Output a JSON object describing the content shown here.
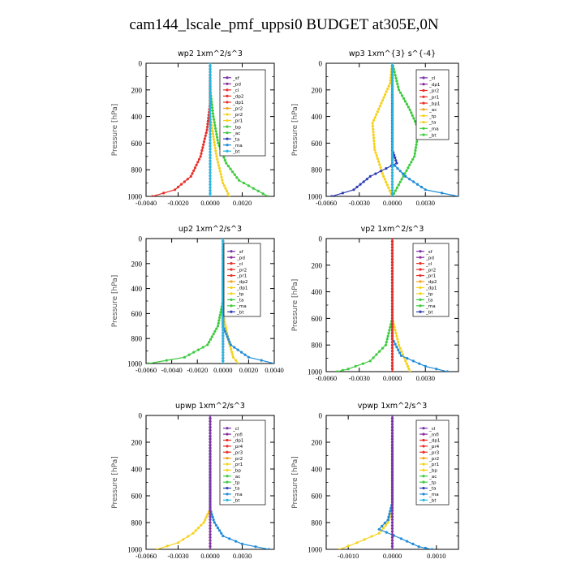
{
  "figure": {
    "title": "cam144_lscale_pmf_uppsi0  BUDGET at305E,0N"
  },
  "chart_data": [
    {
      "type": "line",
      "title": "wp2  1xm^2/s^3",
      "ylabel": "Pressure [hPa]",
      "xlim": [
        -0.004,
        0.004
      ],
      "ylim": [
        1000,
        0
      ],
      "xticks": [
        "-0.0040",
        "-0.0020",
        "0.0000",
        "0.0020"
      ],
      "yticks": [
        "0",
        "200",
        "400",
        "600",
        "800",
        "1000"
      ],
      "legend": [
        "_sf",
        "_pd",
        "_cl",
        "_dp2",
        "_dp1",
        "_pr2",
        "_pr2",
        "_pr1",
        "_bp",
        "_ac",
        "_ta",
        "_ma",
        "_bt"
      ],
      "series": [
        {
          "name": "_cl",
          "color": "#e8302a",
          "points": [
            [
              0,
              0
            ],
            [
              0,
              300
            ],
            [
              -0.0002,
              500
            ],
            [
              -0.0006,
              700
            ],
            [
              -0.0012,
              850
            ],
            [
              -0.0022,
              950
            ],
            [
              -0.0036,
              1000
            ]
          ]
        },
        {
          "name": "_pr2",
          "color": "#f5d21f",
          "points": [
            [
              0,
              0
            ],
            [
              0,
              400
            ],
            [
              0.0004,
              700
            ],
            [
              0.0008,
              900
            ],
            [
              0.0012,
              1000
            ]
          ]
        },
        {
          "name": "_ac",
          "color": "#3ecb3e",
          "points": [
            [
              0,
              0
            ],
            [
              0,
              200
            ],
            [
              0.0002,
              400
            ],
            [
              0.0005,
              600
            ],
            [
              0.001,
              750
            ],
            [
              0.0018,
              880
            ],
            [
              0.003,
              960
            ],
            [
              0.0036,
              1000
            ]
          ]
        },
        {
          "name": "_sf",
          "color": "#7a34a8",
          "points": [
            [
              0,
              0
            ],
            [
              0,
              1000
            ]
          ]
        },
        {
          "name": "_bt",
          "color": "#26b8e0",
          "points": [
            [
              0,
              0
            ],
            [
              0,
              1000
            ]
          ]
        }
      ]
    },
    {
      "type": "line",
      "title": "wp3  1xm^{3} s^{-4}",
      "ylabel": "Pressure [hPa]",
      "xlim": [
        -0.006,
        0.006
      ],
      "ylim": [
        1000,
        0
      ],
      "xticks": [
        "-0.0060",
        "-0.0030",
        "0.0000",
        "0.0030"
      ],
      "yticks": [
        "0",
        "200",
        "400",
        "600",
        "800",
        "1000"
      ],
      "legend": [
        "_cl",
        "_dp1",
        "_pr2",
        "_pr1",
        "_bp1",
        "_ac",
        "_tp",
        "_ta",
        "_ma",
        "_bt"
      ],
      "series": [
        {
          "name": "_pr2",
          "color": "#f5d21f",
          "points": [
            [
              0,
              0
            ],
            [
              -0.0002,
              150
            ],
            [
              -0.001,
              300
            ],
            [
              -0.0018,
              450
            ],
            [
              -0.0016,
              650
            ],
            [
              -0.0008,
              850
            ],
            [
              0,
              1000
            ]
          ]
        },
        {
          "name": "_ac",
          "color": "#3ecb3e",
          "points": [
            [
              0,
              0
            ],
            [
              0.0006,
              200
            ],
            [
              0.0016,
              350
            ],
            [
              0.0024,
              500
            ],
            [
              0.002,
              700
            ],
            [
              0.001,
              850
            ],
            [
              0,
              1000
            ]
          ]
        },
        {
          "name": "_tp",
          "color": "#2d3db5",
          "points": [
            [
              0,
              0
            ],
            [
              0,
              650
            ],
            [
              0.0004,
              750
            ],
            [
              -0.002,
              850
            ],
            [
              -0.0035,
              950
            ],
            [
              -0.0055,
              1000
            ]
          ]
        },
        {
          "name": "_ta",
          "color": "#1f8bd8",
          "points": [
            [
              0,
              0
            ],
            [
              0,
              750
            ],
            [
              0.0012,
              850
            ],
            [
              0.003,
              950
            ],
            [
              0.006,
              1000
            ]
          ]
        },
        {
          "name": "_cl",
          "color": "#e8302a",
          "points": [
            [
              0,
              0
            ],
            [
              0,
              1000
            ]
          ]
        },
        {
          "name": "_bt",
          "color": "#26b8e0",
          "points": [
            [
              0,
              0
            ],
            [
              0,
              1000
            ]
          ]
        }
      ]
    },
    {
      "type": "line",
      "title": "up2  1xm^2/s^3",
      "ylabel": "Pressure [hPa]",
      "xlim": [
        -0.006,
        0.004
      ],
      "ylim": [
        1000,
        0
      ],
      "xticks": [
        "-0.0060",
        "-0.0040",
        "-0.0020",
        "0.0000",
        "0.0020",
        "0.0040"
      ],
      "yticks": [
        "0",
        "200",
        "400",
        "600",
        "800",
        "1000"
      ],
      "legend": [
        "_sf",
        "_pd",
        "_cl",
        "_pr2",
        "_pr1",
        "_dp2",
        "_dp1",
        "_tp",
        "_ta",
        "_ma",
        "_bt"
      ],
      "series": [
        {
          "name": "_dp2",
          "color": "#3ecb3e",
          "points": [
            [
              0,
              0
            ],
            [
              0,
              500
            ],
            [
              -0.0004,
              700
            ],
            [
              -0.0012,
              850
            ],
            [
              -0.003,
              950
            ],
            [
              -0.0058,
              1000
            ]
          ]
        },
        {
          "name": "_pr2",
          "color": "#f5d21f",
          "points": [
            [
              0,
              0
            ],
            [
              0,
              600
            ],
            [
              0.0004,
              800
            ],
            [
              0.0008,
              950
            ],
            [
              0.0012,
              1000
            ]
          ]
        },
        {
          "name": "_ta",
          "color": "#1f8bd8",
          "points": [
            [
              0,
              0
            ],
            [
              0,
              700
            ],
            [
              0.0006,
              850
            ],
            [
              0.002,
              950
            ],
            [
              0.004,
              1000
            ]
          ]
        },
        {
          "name": "_sf",
          "color": "#7a34a8",
          "points": [
            [
              0,
              0
            ],
            [
              0,
              1000
            ]
          ]
        },
        {
          "name": "_bt",
          "color": "#26b8e0",
          "points": [
            [
              0,
              0
            ],
            [
              0,
              1000
            ]
          ]
        }
      ]
    },
    {
      "type": "line",
      "title": "vp2  1xm^2/s^3",
      "ylabel": "Pressure [hPa]",
      "xlim": [
        -0.006,
        0.006
      ],
      "ylim": [
        1000,
        0
      ],
      "xticks": [
        "-0.0060",
        "-0.0030",
        "0.0000",
        "0.0030"
      ],
      "yticks": [
        "0",
        "200",
        "400",
        "600",
        "800",
        "1000"
      ],
      "legend": [
        "_sf",
        "_pd",
        "_cl",
        "_pr2",
        "_pr1",
        "_dp2",
        "_dp1",
        "_tp",
        "_ta",
        "_ma",
        "_bt"
      ],
      "series": [
        {
          "name": "_dp2",
          "color": "#3ecb3e",
          "points": [
            [
              0,
              0
            ],
            [
              0,
              600
            ],
            [
              -0.0006,
              800
            ],
            [
              -0.002,
              920
            ],
            [
              -0.004,
              980
            ],
            [
              -0.005,
              1000
            ]
          ]
        },
        {
          "name": "_pr2",
          "color": "#f5d21f",
          "points": [
            [
              0,
              0
            ],
            [
              0,
              600
            ],
            [
              0.0006,
              800
            ],
            [
              0.0012,
              920
            ],
            [
              0.0016,
              1000
            ]
          ]
        },
        {
          "name": "_ta",
          "color": "#1f8bd8",
          "points": [
            [
              0,
              0
            ],
            [
              0,
              750
            ],
            [
              0.0008,
              880
            ],
            [
              0.003,
              960
            ],
            [
              0.005,
              1000
            ]
          ]
        },
        {
          "name": "_sf",
          "color": "#7a34a8",
          "points": [
            [
              0,
              0
            ],
            [
              0,
              1000
            ]
          ]
        },
        {
          "name": "_cl",
          "color": "#e8302a",
          "points": [
            [
              0,
              0
            ],
            [
              0,
              1000
            ]
          ]
        }
      ]
    },
    {
      "type": "line",
      "title": "upwp  1xm^2/s^3",
      "ylabel": "Pressure [hPa]",
      "xlim": [
        -0.006,
        0.006
      ],
      "ylim": [
        1000,
        0
      ],
      "xticks": [
        "-0.0060",
        "-0.0030",
        "0.0000",
        "0.0030"
      ],
      "yticks": [
        "0",
        "200",
        "400",
        "600",
        "800",
        "1000"
      ],
      "legend": [
        "_cl",
        "_mfl",
        "_dp1",
        "_pr4",
        "_pr3",
        "_pr2",
        "_pr1",
        "_bp",
        "_ac",
        "_tp",
        "_ta",
        "_ma",
        "_bt"
      ],
      "series": [
        {
          "name": "_pr2",
          "color": "#f5d21f",
          "points": [
            [
              0,
              0
            ],
            [
              0,
              700
            ],
            [
              -0.0006,
              800
            ],
            [
              -0.0016,
              880
            ],
            [
              -0.003,
              950
            ],
            [
              -0.005,
              1000
            ]
          ]
        },
        {
          "name": "_ta",
          "color": "#1f8bd8",
          "points": [
            [
              0,
              0
            ],
            [
              0,
              700
            ],
            [
              0.0004,
              800
            ],
            [
              0.0012,
              900
            ],
            [
              0.003,
              960
            ],
            [
              0.0055,
              1000
            ]
          ]
        },
        {
          "name": "_dp1",
          "color": "#e8302a",
          "points": [
            [
              0,
              0
            ],
            [
              0,
              1000
            ]
          ]
        },
        {
          "name": "_cl",
          "color": "#7a34a8",
          "points": [
            [
              0,
              0
            ],
            [
              0,
              1000
            ]
          ]
        }
      ]
    },
    {
      "type": "line",
      "title": "vpwp  1xm^2/s^3",
      "ylabel": "Pressure [hPa]",
      "xlim": [
        -0.0015,
        0.0015
      ],
      "ylim": [
        1000,
        0
      ],
      "xticks": [
        "-0.0010",
        "0.0000",
        "0.0010"
      ],
      "yticks": [
        "0",
        "200",
        "400",
        "600",
        "800",
        "1000"
      ],
      "legend": [
        "_cl",
        "_mfl",
        "_dp1",
        "_pr4",
        "_pr3",
        "_pr2",
        "_pr1",
        "_bp",
        "_ac",
        "_tp",
        "_ta",
        "_ma",
        "_bt"
      ],
      "series": [
        {
          "name": "_pr2",
          "color": "#f5d21f",
          "points": [
            [
              0,
              0
            ],
            [
              0,
              700
            ],
            [
              -0.0001,
              800
            ],
            [
              -0.0003,
              880
            ],
            [
              -0.0008,
              950
            ],
            [
              -0.0012,
              1000
            ]
          ]
        },
        {
          "name": "_ta",
          "color": "#1f8bd8",
          "points": [
            [
              0,
              0
            ],
            [
              0,
              650
            ],
            [
              -0.0001,
              780
            ],
            [
              -0.0003,
              850
            ],
            [
              0.0002,
              920
            ],
            [
              0.0006,
              980
            ],
            [
              0.0009,
              1000
            ]
          ]
        },
        {
          "name": "_dp1",
          "color": "#e8302a",
          "points": [
            [
              0,
              0
            ],
            [
              0,
              1000
            ]
          ]
        },
        {
          "name": "_cl",
          "color": "#7a34a8",
          "points": [
            [
              0,
              0
            ],
            [
              0,
              1000
            ]
          ]
        }
      ]
    }
  ]
}
